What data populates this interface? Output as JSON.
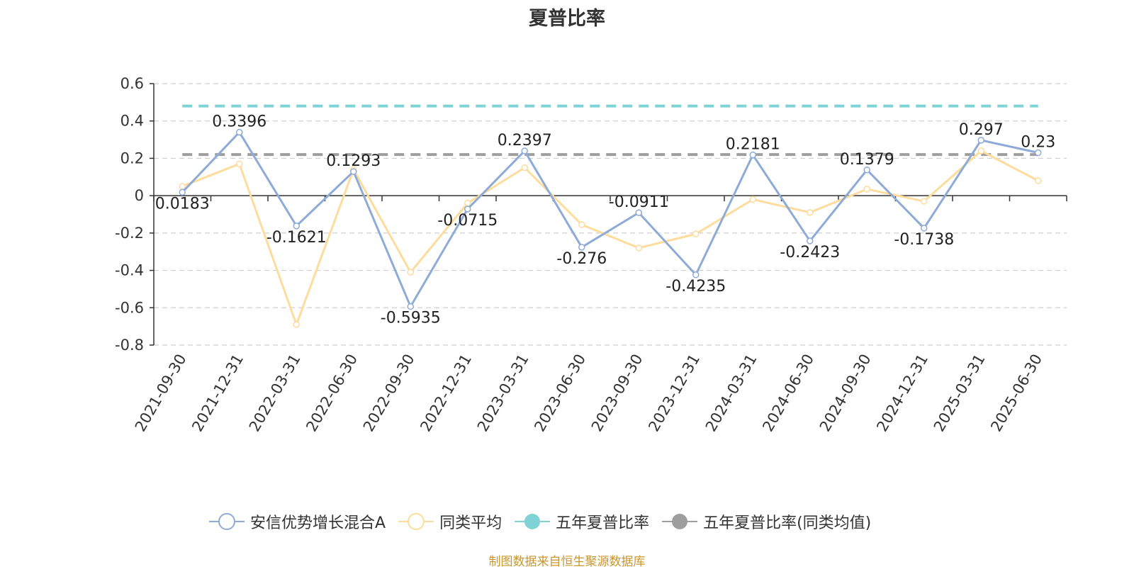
{
  "chart_data": {
    "type": "line",
    "title": "夏普比率",
    "categories": [
      "2021-09-30",
      "2021-12-31",
      "2022-03-31",
      "2022-06-30",
      "2022-09-30",
      "2022-12-31",
      "2023-03-31",
      "2023-06-30",
      "2023-09-30",
      "2023-12-31",
      "2024-03-31",
      "2024-06-30",
      "2024-09-30",
      "2024-12-31",
      "2025-03-31",
      "2025-06-30"
    ],
    "yticks": [
      "0.6",
      "0.4",
      "0.2",
      "0",
      "-0.2",
      "-0.4",
      "-0.6",
      "-0.8"
    ],
    "ylim": [
      -0.8,
      0.6
    ],
    "grid": true,
    "legend_position": "bottom",
    "series": [
      {
        "name": "安信优势增长混合A",
        "color": "#8eabd8",
        "values": [
          0.0183,
          0.3396,
          -0.1621,
          0.1293,
          -0.5935,
          -0.0715,
          0.2397,
          -0.276,
          -0.0911,
          -0.4235,
          0.2181,
          -0.2423,
          0.1379,
          -0.1738,
          0.297,
          0.23
        ],
        "labels": [
          "0.0183",
          "0.3396",
          "-0.1621",
          "0.1293",
          "-0.5935",
          "-0.0715",
          "0.2397",
          "-0.276",
          "-0.0911",
          "-0.4235",
          "0.2181",
          "-0.2423",
          "0.1379",
          "-0.1738",
          "0.297",
          "0.23"
        ]
      },
      {
        "name": "同类平均",
        "color": "#fddc9d",
        "values": [
          0.05,
          0.17,
          -0.69,
          0.14,
          -0.41,
          -0.04,
          0.15,
          -0.155,
          -0.28,
          -0.205,
          -0.02,
          -0.09,
          0.035,
          -0.03,
          0.24,
          0.08
        ]
      },
      {
        "name": "五年夏普比率",
        "color": "#7fd3d4",
        "style": "dashed",
        "value": 0.48
      },
      {
        "name": "五年夏普比率(同类均值)",
        "color": "#9e9e9e",
        "style": "dashed",
        "value": 0.22
      }
    ]
  },
  "source_note": "制图数据来自恒生聚源数据库"
}
